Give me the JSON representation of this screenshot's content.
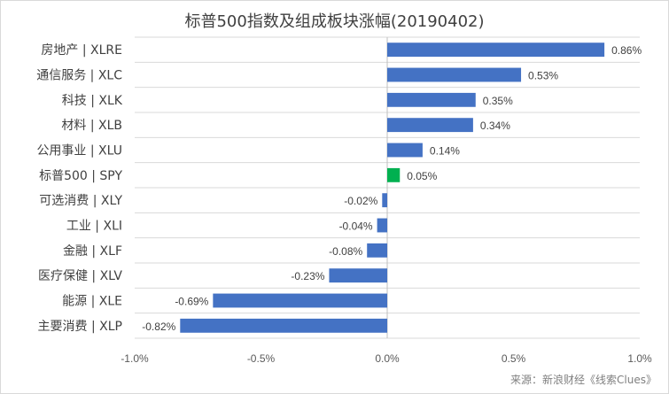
{
  "chart_data": {
    "type": "bar",
    "orientation": "horizontal",
    "title": "标普500指数及组成板块涨幅(20190402)",
    "categories": [
      "房地产 | XLRE",
      "通信服务 | XLC",
      "科技 | XLK",
      "材料 | XLB",
      "公用事业 | XLU",
      "标普500 | SPY",
      "可选消费 | XLY",
      "工业 | XLI",
      "金融 | XLF",
      "医疗保健 | XLV",
      "能源 | XLE",
      "主要消费 | XLP"
    ],
    "values": [
      0.86,
      0.53,
      0.35,
      0.34,
      0.14,
      0.05,
      -0.02,
      -0.04,
      -0.08,
      -0.23,
      -0.69,
      -0.82
    ],
    "value_labels": [
      "0.86%",
      "0.53%",
      "0.35%",
      "0.34%",
      "0.14%",
      "0.05%",
      "-0.02%",
      "-0.04%",
      "-0.08%",
      "-0.23%",
      "-0.69%",
      "-0.82%"
    ],
    "bar_colors": [
      "#4472c4",
      "#4472c4",
      "#4472c4",
      "#4472c4",
      "#4472c4",
      "#00b050",
      "#4472c4",
      "#4472c4",
      "#4472c4",
      "#4472c4",
      "#4472c4",
      "#4472c4"
    ],
    "xlim": [
      -1.0,
      1.0
    ],
    "x_ticks": [
      -1.0,
      -0.5,
      0.0,
      0.5,
      1.0
    ],
    "x_tick_labels": [
      "-1.0%",
      "-0.5%",
      "0.0%",
      "0.5%",
      "1.0%"
    ],
    "grid": true,
    "legend": "none",
    "source": "来源：新浪财经《线索Clues》"
  }
}
